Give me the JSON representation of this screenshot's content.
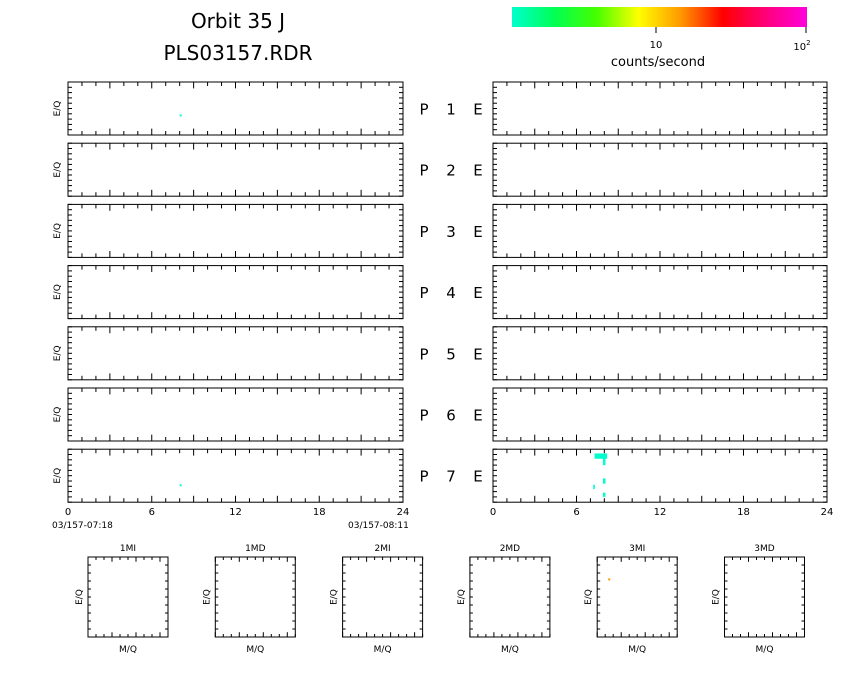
{
  "header": {
    "title": "Orbit 35 J",
    "file": "PLS03157.RDR"
  },
  "colorbar": {
    "label": "counts/second",
    "tick_10": "10",
    "tick_100_base": "10",
    "tick_100_exp": "2",
    "stops": [
      "#00ffcc",
      "#00ff55",
      "#44ff00",
      "#ffff00",
      "#ff9900",
      "#ff0000",
      "#ff0077",
      "#ff00dd"
    ]
  },
  "chart_data": {
    "type": "heatmap",
    "panels": {
      "ylabel": "E/Q",
      "rows": [
        {
          "p": "P",
          "n": "1",
          "e": "E"
        },
        {
          "p": "P",
          "n": "2",
          "e": "E"
        },
        {
          "p": "P",
          "n": "3",
          "e": "E"
        },
        {
          "p": "P",
          "n": "4",
          "e": "E"
        },
        {
          "p": "P",
          "n": "5",
          "e": "E"
        },
        {
          "p": "P",
          "n": "6",
          "e": "E"
        },
        {
          "p": "P",
          "n": "7",
          "e": "E"
        }
      ],
      "xlim": [
        0,
        24
      ],
      "xticks": [
        "0",
        "6",
        "12",
        "18",
        "24"
      ],
      "time_start": "03/157-07:18",
      "time_end": "03/157-08:11",
      "points": [
        {
          "side": "left",
          "row": 1,
          "x": 8.0,
          "y": 0.35,
          "color": "#00ffcc"
        },
        {
          "side": "left",
          "row": 7,
          "x": 8.0,
          "y": 0.3,
          "color": "#00ffcc"
        },
        {
          "side": "right",
          "row": 7,
          "x": 7.3,
          "y": 0.82,
          "color": "#00ffcc",
          "w": 0.9,
          "h": 0.1
        },
        {
          "side": "right",
          "row": 7,
          "x": 7.9,
          "y": 0.7,
          "color": "#00ffcc",
          "w": 0.18,
          "h": 0.14
        },
        {
          "side": "right",
          "row": 7,
          "x": 7.9,
          "y": 0.35,
          "color": "#00ffcc",
          "w": 0.18,
          "h": 0.1
        },
        {
          "side": "right",
          "row": 7,
          "x": 7.9,
          "y": 0.1,
          "color": "#00ffcc",
          "w": 0.18,
          "h": 0.08
        },
        {
          "side": "right",
          "row": 7,
          "x": 7.2,
          "y": 0.25,
          "color": "#00ffcc",
          "w": 0.12,
          "h": 0.08
        }
      ]
    },
    "small_panels": {
      "xlabel": "M/Q",
      "ylabel": "E/Q",
      "titles": [
        "1MI",
        "1MD",
        "2MI",
        "2MD",
        "3MI",
        "3MD"
      ],
      "points": [
        {
          "panel": 4,
          "x": 0.15,
          "y": 0.72,
          "color": "#ff9900"
        }
      ]
    }
  }
}
